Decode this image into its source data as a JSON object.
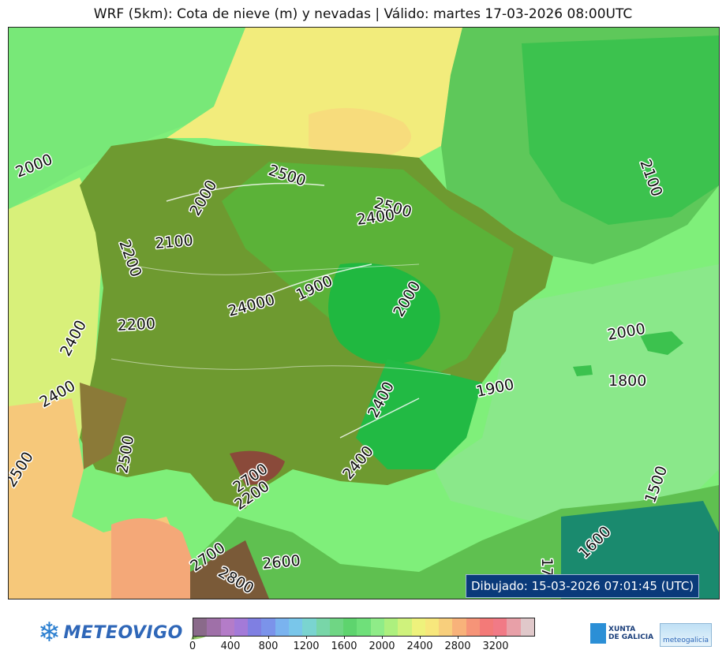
{
  "title": "WRF (5km): Cota de nieve (m) y nevadas | Válido: martes 17-03-2026 08:00UTC",
  "timestamp": "Dibujado: 15-03-2026 07:01:45 (UTC)",
  "contour_labels": [
    "2000",
    "2500",
    "2000",
    "2500",
    "2400",
    "2100",
    "2100",
    "2200",
    "24000",
    "1900",
    "2000",
    "2200",
    "2400",
    "2000",
    "1800",
    "2400",
    "1900",
    "2400",
    "2500",
    "2500",
    "2700",
    "2200",
    "2400",
    "1500",
    "1600",
    "2700",
    "2800",
    "2600",
    "17"
  ],
  "colorbar": {
    "colors": [
      "#8a6a8a",
      "#9f70a8",
      "#b47cc8",
      "#a37ad8",
      "#7f7fe2",
      "#7b93ea",
      "#7ab3ef",
      "#79c6ea",
      "#7ad4d0",
      "#78d6a8",
      "#6fd684",
      "#5ed46e",
      "#6fe07a",
      "#8fec88",
      "#adf07e",
      "#cff27c",
      "#eef27c",
      "#f7e77c",
      "#f8cf7c",
      "#f8b27a",
      "#f69478",
      "#f37a78",
      "#f17a86",
      "#e8a0a8",
      "#e0c8ca"
    ],
    "ticks": [
      "0",
      "400",
      "800",
      "1200",
      "1600",
      "2000",
      "2400",
      "2800",
      "3200"
    ]
  },
  "logos": {
    "meteovigo": "METEOVIGO",
    "xunta_line1": "XUNTA",
    "xunta_line2": "DE GALICIA",
    "meteogalicia": "meteogalicia"
  }
}
